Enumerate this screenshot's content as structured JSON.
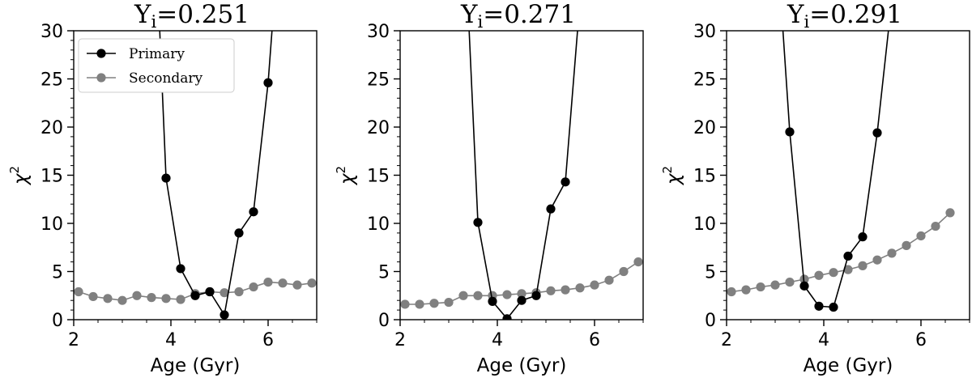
{
  "colors": {
    "primary": "#000000",
    "secondary": "#808080",
    "background": "#ffffff"
  },
  "legend": {
    "placement": "upper-left",
    "panel": 0,
    "entries": [
      "Primary",
      "Secondary"
    ]
  },
  "chart_data": [
    {
      "type": "line",
      "title": "Y",
      "title_sub": "i",
      "title_value": "=0.251",
      "xlabel": "Age (Gyr)",
      "ylabel": "χ",
      "ylabel_sup": "2",
      "xlim": [
        2,
        7
      ],
      "ylim": [
        0,
        30
      ],
      "xticks": [
        2,
        4,
        6
      ],
      "xtick_labels": [
        "2",
        "4",
        "6"
      ],
      "yticks": [
        0,
        5,
        10,
        15,
        20,
        25,
        30
      ],
      "ytick_labels": [
        "0",
        "5",
        "10",
        "15",
        "20",
        "25",
        "30"
      ],
      "grid": false,
      "series": [
        {
          "name": "Primary",
          "color": "#000000",
          "x": [
            3.9,
            4.2,
            4.5,
            4.8,
            5.1,
            5.4,
            5.7,
            6.0
          ],
          "y": [
            14.7,
            5.3,
            2.5,
            2.9,
            0.5,
            9.0,
            11.2,
            24.6
          ],
          "line_left": {
            "x": 3.77,
            "y": 30
          },
          "line_right": {
            "x": 6.08,
            "y": 30
          }
        },
        {
          "name": "Secondary",
          "color": "#808080",
          "x": [
            2.1,
            2.4,
            2.7,
            3.0,
            3.3,
            3.6,
            3.9,
            4.2,
            4.5,
            4.8,
            5.1,
            5.4,
            5.7,
            6.0,
            6.3,
            6.6,
            6.9
          ],
          "y": [
            2.9,
            2.4,
            2.2,
            2.0,
            2.5,
            2.3,
            2.2,
            2.1,
            2.7,
            2.9,
            2.8,
            2.9,
            3.4,
            3.9,
            3.8,
            3.6,
            3.8
          ]
        }
      ]
    },
    {
      "type": "line",
      "title": "Y",
      "title_sub": "i",
      "title_value": "=0.271",
      "xlabel": "Age (Gyr)",
      "ylabel": "χ",
      "ylabel_sup": "2",
      "xlim": [
        2,
        7
      ],
      "ylim": [
        0,
        30
      ],
      "xticks": [
        2,
        4,
        6
      ],
      "xtick_labels": [
        "2",
        "4",
        "6"
      ],
      "yticks": [
        0,
        5,
        10,
        15,
        20,
        25,
        30
      ],
      "ytick_labels": [
        "0",
        "5",
        "10",
        "15",
        "20",
        "25",
        "30"
      ],
      "grid": false,
      "series": [
        {
          "name": "Primary",
          "color": "#000000",
          "x": [
            3.6,
            3.9,
            4.2,
            4.5,
            4.8,
            5.1,
            5.4
          ],
          "y": [
            10.1,
            1.9,
            0.1,
            2.0,
            2.5,
            11.5,
            14.3
          ],
          "line_left": {
            "x": 3.42,
            "y": 30
          },
          "line_right": {
            "x": 5.65,
            "y": 30
          }
        },
        {
          "name": "Secondary",
          "color": "#808080",
          "x": [
            2.1,
            2.4,
            2.7,
            3.0,
            3.3,
            3.6,
            3.9,
            4.2,
            4.5,
            4.8,
            5.1,
            5.4,
            5.7,
            6.0,
            6.3,
            6.6,
            6.9
          ],
          "y": [
            1.6,
            1.6,
            1.7,
            1.8,
            2.5,
            2.5,
            2.5,
            2.6,
            2.7,
            2.8,
            3.0,
            3.1,
            3.3,
            3.6,
            4.1,
            5.0,
            6.0
          ]
        }
      ]
    },
    {
      "type": "line",
      "title": "Y",
      "title_sub": "i",
      "title_value": "=0.291",
      "xlabel": "Age (Gyr)",
      "ylabel": "χ",
      "ylabel_sup": "2",
      "xlim": [
        2,
        7
      ],
      "ylim": [
        0,
        30
      ],
      "xticks": [
        2,
        4,
        6
      ],
      "xtick_labels": [
        "2",
        "4",
        "6"
      ],
      "yticks": [
        0,
        5,
        10,
        15,
        20,
        25,
        30
      ],
      "ytick_labels": [
        "0",
        "5",
        "10",
        "15",
        "20",
        "25",
        "30"
      ],
      "grid": false,
      "series": [
        {
          "name": "Primary",
          "color": "#000000",
          "x": [
            3.3,
            3.6,
            3.9,
            4.2,
            4.5,
            4.8,
            5.1
          ],
          "y": [
            19.5,
            3.5,
            1.4,
            1.3,
            6.6,
            8.6,
            19.4
          ],
          "line_left": {
            "x": 3.16,
            "y": 30
          },
          "line_right": {
            "x": 5.33,
            "y": 30
          }
        },
        {
          "name": "Secondary",
          "color": "#808080",
          "x": [
            2.1,
            2.4,
            2.7,
            3.0,
            3.3,
            3.6,
            3.9,
            4.2,
            4.5,
            4.8,
            5.1,
            5.4,
            5.7,
            6.0,
            6.3,
            6.6
          ],
          "y": [
            2.9,
            3.1,
            3.4,
            3.6,
            3.9,
            4.2,
            4.6,
            4.9,
            5.2,
            5.6,
            6.2,
            6.9,
            7.7,
            8.7,
            9.7,
            11.1
          ]
        }
      ]
    }
  ]
}
